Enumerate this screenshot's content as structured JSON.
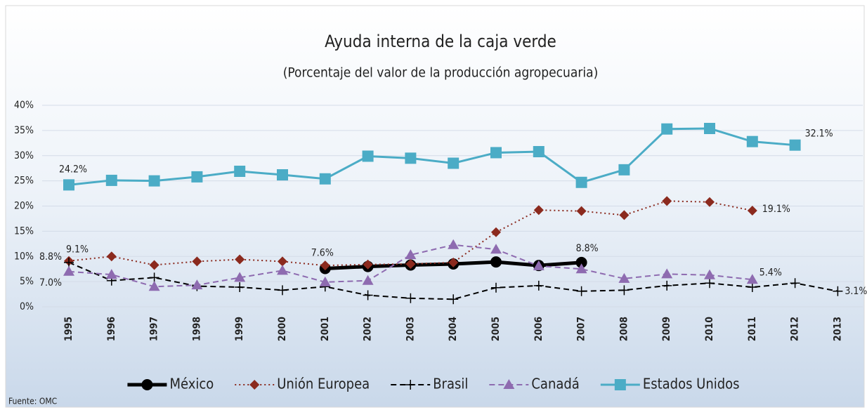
{
  "chart_data": {
    "type": "line",
    "title": "Ayuda interna de la caja verde",
    "subtitle": "(Porcentaje del valor de la producción agropecuaria)",
    "source": "Fuente: OMC",
    "categories": [
      "1995",
      "1996",
      "1997",
      "1998",
      "1999",
      "2000",
      "2001",
      "2002",
      "2003",
      "2004",
      "2005",
      "2006",
      "2007",
      "2008",
      "2009",
      "2010",
      "2011",
      "2012",
      "2013"
    ],
    "ylim": [
      0,
      40
    ],
    "yticks": [
      {
        "value": 0,
        "label": "0%"
      },
      {
        "value": 5,
        "label": "5%"
      },
      {
        "value": 10,
        "label": "10%"
      },
      {
        "value": 15,
        "label": "15%"
      },
      {
        "value": 20,
        "label": "20%"
      },
      {
        "value": 25,
        "label": "25%"
      },
      {
        "value": 30,
        "label": "30%"
      },
      {
        "value": 35,
        "label": "35%"
      },
      {
        "value": 40,
        "label": "40%"
      }
    ],
    "grid": true,
    "legend": "bottom",
    "series": [
      {
        "name": "México",
        "color": "#000000",
        "marker": "circle",
        "dash": "solid",
        "width": 5,
        "values": [
          null,
          null,
          null,
          null,
          null,
          null,
          7.6,
          8.0,
          8.3,
          8.5,
          8.9,
          8.2,
          8.8,
          null,
          null,
          null,
          null,
          null,
          null
        ],
        "value_labels": [
          null,
          null,
          null,
          null,
          null,
          null,
          "7.6%",
          null,
          null,
          null,
          null,
          null,
          "8.8%",
          null,
          null,
          null,
          null,
          null,
          null
        ]
      },
      {
        "name": "Unión Europea",
        "color": "#8b2a1e",
        "marker": "diamond",
        "dash": "dotted",
        "width": 2,
        "values": [
          9.1,
          10.0,
          8.3,
          9.0,
          9.4,
          9.0,
          8.2,
          8.4,
          8.5,
          8.8,
          14.8,
          19.2,
          19.0,
          18.2,
          21.0,
          20.8,
          19.1,
          null,
          null
        ],
        "value_labels": [
          "9.1%",
          null,
          null,
          null,
          null,
          null,
          null,
          null,
          null,
          null,
          null,
          null,
          null,
          null,
          null,
          null,
          "19.1%",
          null,
          null
        ]
      },
      {
        "name": "Brasil",
        "color": "#000000",
        "marker": "plus",
        "dash": "dashed",
        "width": 2,
        "values": [
          8.8,
          5.2,
          5.8,
          4.1,
          3.9,
          3.3,
          4.0,
          2.3,
          1.7,
          1.5,
          3.8,
          4.2,
          3.1,
          3.3,
          4.2,
          4.7,
          3.9,
          4.7,
          3.1
        ],
        "value_labels": [
          "8.8%",
          null,
          null,
          null,
          null,
          null,
          null,
          null,
          null,
          null,
          null,
          null,
          null,
          null,
          null,
          null,
          null,
          null,
          "3.1%"
        ]
      },
      {
        "name": "Canadá",
        "color": "#8e6bb0",
        "marker": "triangle",
        "dash": "dashed",
        "width": 2,
        "values": [
          7.0,
          6.4,
          4.0,
          4.3,
          5.8,
          7.2,
          4.9,
          5.2,
          10.3,
          12.3,
          11.4,
          8.1,
          7.5,
          5.6,
          6.5,
          6.3,
          5.4,
          null,
          null
        ],
        "value_labels": [
          "7.0%",
          null,
          null,
          null,
          null,
          null,
          null,
          null,
          null,
          null,
          null,
          null,
          null,
          null,
          null,
          null,
          "5.4%",
          null,
          null
        ]
      },
      {
        "name": "Estados Unidos",
        "color": "#4bacc6",
        "marker": "square",
        "dash": "solid",
        "width": 3,
        "values": [
          24.2,
          25.1,
          25.0,
          25.8,
          26.9,
          26.2,
          25.4,
          29.9,
          29.5,
          28.5,
          30.6,
          30.8,
          24.7,
          27.2,
          35.3,
          35.4,
          32.8,
          32.1,
          null
        ],
        "value_labels": [
          "24.2%",
          null,
          null,
          null,
          null,
          null,
          null,
          null,
          null,
          null,
          null,
          null,
          null,
          null,
          null,
          null,
          null,
          "32.1%",
          null
        ]
      }
    ]
  }
}
